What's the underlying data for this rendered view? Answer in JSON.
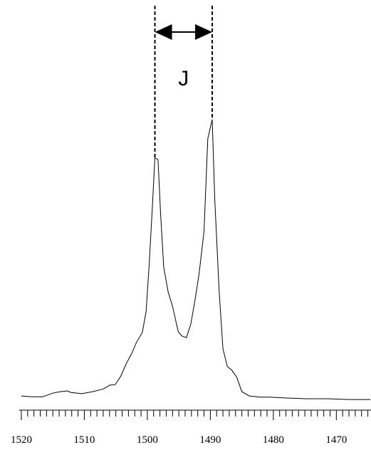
{
  "chart_data": {
    "type": "line",
    "x": [
      1520.0,
      1518.3,
      1516.6,
      1514.9,
      1513.8,
      1512.7,
      1512.1,
      1510.4,
      1508.7,
      1507.0,
      1505.9,
      1505.1,
      1504.2,
      1503.3,
      1502.5,
      1501.7,
      1500.8,
      1500.2,
      1499.7,
      1499.2,
      1498.8,
      1498.3,
      1497.9,
      1497.4,
      1496.7,
      1496.0,
      1495.1,
      1494.5,
      1493.8,
      1493.1,
      1492.4,
      1491.8,
      1491.0,
      1490.4,
      1489.7,
      1489.3,
      1488.6,
      1488.0,
      1487.3,
      1486.6,
      1485.8,
      1485.0,
      1483.8,
      1482.1,
      1480.5,
      1478.2,
      1474.8,
      1471.4,
      1468.0,
      1464.6
    ],
    "values": [
      0.7,
      0.5,
      0.5,
      1.5,
      1.8,
      2.0,
      1.6,
      1.3,
      1.8,
      2.5,
      3.5,
      3.6,
      5.8,
      9.1,
      11.5,
      14.5,
      16.9,
      22.2,
      34.5,
      49.1,
      61.5,
      61.1,
      47.3,
      33.6,
      27.3,
      23.6,
      17.1,
      16.0,
      15.6,
      19.1,
      25.5,
      31.8,
      42.7,
      66.4,
      71.3,
      50.9,
      27.3,
      12.7,
      8.2,
      7.3,
      5.5,
      1.8,
      0.7,
      0.4,
      0.4,
      0.2,
      0,
      0,
      -0.2,
      -0.2
    ],
    "color": "#000000",
    "xlim": [
      1520.3,
      1464.5
    ],
    "ylim": [
      0,
      100
    ],
    "xticks": [
      1520,
      1510,
      1500,
      1490,
      1480,
      1470
    ],
    "xticks_minor": [
      1519,
      1518,
      1517,
      1516,
      1515,
      1514,
      1513,
      1512,
      1511,
      1509,
      1508,
      1507,
      1506,
      1505,
      1504,
      1503,
      1502,
      1501,
      1499,
      1498,
      1497,
      1496,
      1495,
      1494,
      1493,
      1492,
      1491,
      1489,
      1488,
      1487,
      1486,
      1485,
      1484,
      1483,
      1482,
      1481,
      1479,
      1478,
      1477,
      1476,
      1475,
      1474,
      1473,
      1472,
      1471,
      1469,
      1468,
      1467,
      1466,
      1465
    ],
    "annotations": [
      {
        "text": "J",
        "x1": 1498.8,
        "x2": 1489.7
      }
    ]
  }
}
